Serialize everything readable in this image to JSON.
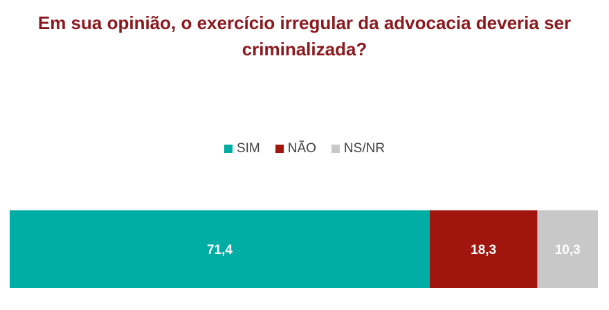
{
  "chart_data": {
    "type": "bar",
    "orientation": "horizontal",
    "stacked": true,
    "title": "Em sua opinião, o exercício irregular da advocacia deveria ser criminalizada?",
    "legend_position": "top",
    "series": [
      {
        "name": "SIM",
        "value": 71.4,
        "label": "71,4",
        "color": "#00ada4"
      },
      {
        "name": "NÃO",
        "value": 18.3,
        "label": "18,3",
        "color": "#a0160f"
      },
      {
        "name": "NS/NR",
        "value": 10.3,
        "label": "10,3",
        "color": "#c8c8c8"
      }
    ],
    "xlim": [
      0,
      100
    ]
  }
}
